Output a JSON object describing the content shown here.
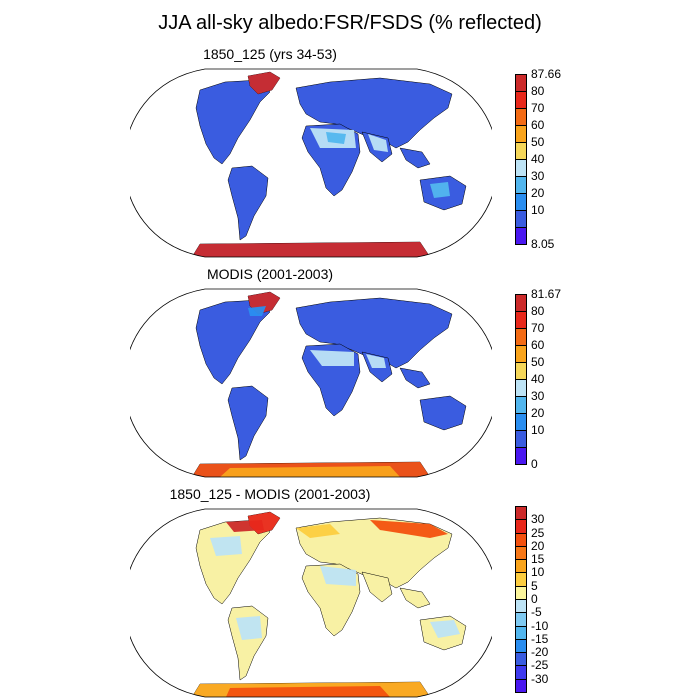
{
  "title": "JJA all-sky albedo:FSR/FSDS (% reflected)",
  "colors": {
    "land_base": "#3a5ce0",
    "ocean": "#ffffff",
    "coast": "#000000"
  },
  "panels": [
    {
      "id": "model",
      "title": "1850_125 (yrs 34-53)",
      "colorbar": {
        "labels": [
          "87.66",
          "80",
          "70",
          "60",
          "50",
          "40",
          "30",
          "20",
          "10",
          "8.05"
        ],
        "colors": [
          "#cc2a2a",
          "#e8281b",
          "#f36b14",
          "#f9a41c",
          "#f5d75a",
          "#bde3f5",
          "#52b6ee",
          "#2a8ef0",
          "#3a5ce0",
          "#4a18f0"
        ]
      },
      "land_fill": "#3a5ce0"
    },
    {
      "id": "obs",
      "title": "MODIS (2001-2003)",
      "colorbar": {
        "labels": [
          "81.67",
          "80",
          "70",
          "60",
          "50",
          "40",
          "30",
          "20",
          "10",
          "0"
        ],
        "colors": [
          "#cc2a2a",
          "#e8281b",
          "#f36b14",
          "#f9a41c",
          "#f5d75a",
          "#bde3f5",
          "#52b6ee",
          "#2a8ef0",
          "#3a5ce0",
          "#4a18f0"
        ]
      },
      "land_fill": "#3a5ce0"
    },
    {
      "id": "diff",
      "title": "1850_125 - MODIS (2001-2003)",
      "colorbar": {
        "labels": [
          "30",
          "25",
          "20",
          "15",
          "10",
          "5",
          "0",
          "-5",
          "-10",
          "-15",
          "-20",
          "-25",
          "-30"
        ],
        "colors": [
          "#cc2a2a",
          "#e8281b",
          "#f3510f",
          "#f77818",
          "#f9a41c",
          "#fccd40",
          "#fbf59c",
          "#bde3f5",
          "#7fcaf2",
          "#52b6ee",
          "#2a8ef0",
          "#3a5ce0",
          "#3f3aee",
          "#4a18f0"
        ]
      },
      "land_fill": "#f8f1a4"
    }
  ]
}
